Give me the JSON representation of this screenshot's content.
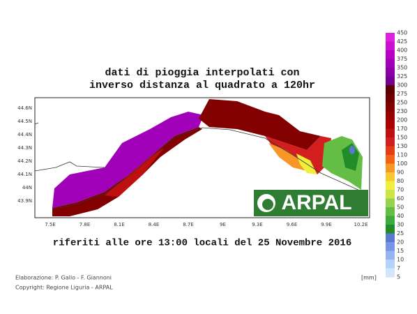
{
  "title": {
    "lines": [
      "dati di pioggia interpolati con",
      "inverso distanza al quadrato a 120hr"
    ]
  },
  "subtitle": "riferiti alle ore 13:00 locali del 25 Novembre 2016",
  "credits": [
    "Elaborazione: P. Gallo - F. Giannoni",
    "Copyright: Regione Liguria - ARPAL"
  ],
  "logo": "ARPAL",
  "unit": "[mm]",
  "map": {
    "lat_labels": [
      "44.6N",
      "44.5N",
      "44.4N",
      "44.3N",
      "44.2N",
      "44.1N",
      "44N",
      "43.9N"
    ],
    "lon_labels": [
      "7.5E",
      "7.8E",
      "8.1E",
      "8.4E",
      "8.7E",
      "9E",
      "9.3E",
      "9.6E",
      "9.9E",
      "10.2E"
    ]
  },
  "colorbar": {
    "levels": [
      450,
      425,
      400,
      375,
      350,
      325,
      300,
      275,
      250,
      230,
      200,
      170,
      150,
      130,
      110,
      100,
      90,
      80,
      70,
      60,
      50,
      40,
      30,
      25,
      20,
      15,
      10,
      7,
      5
    ],
    "colors": [
      "#e020e0",
      "#cc10d0",
      "#b800c8",
      "#a000b8",
      "#8a00a8",
      "#760090",
      "#5a0000",
      "#6e0000",
      "#820000",
      "#960000",
      "#aa0000",
      "#be1010",
      "#d21e1e",
      "#e63c14",
      "#f06414",
      "#f89628",
      "#f8c832",
      "#f0f03c",
      "#c8e646",
      "#96d250",
      "#64be46",
      "#3caa3c",
      "#228c28",
      "#5a78d2",
      "#7896e6",
      "#96b4f0",
      "#b4d2fa",
      "#d2e6ff"
    ]
  }
}
